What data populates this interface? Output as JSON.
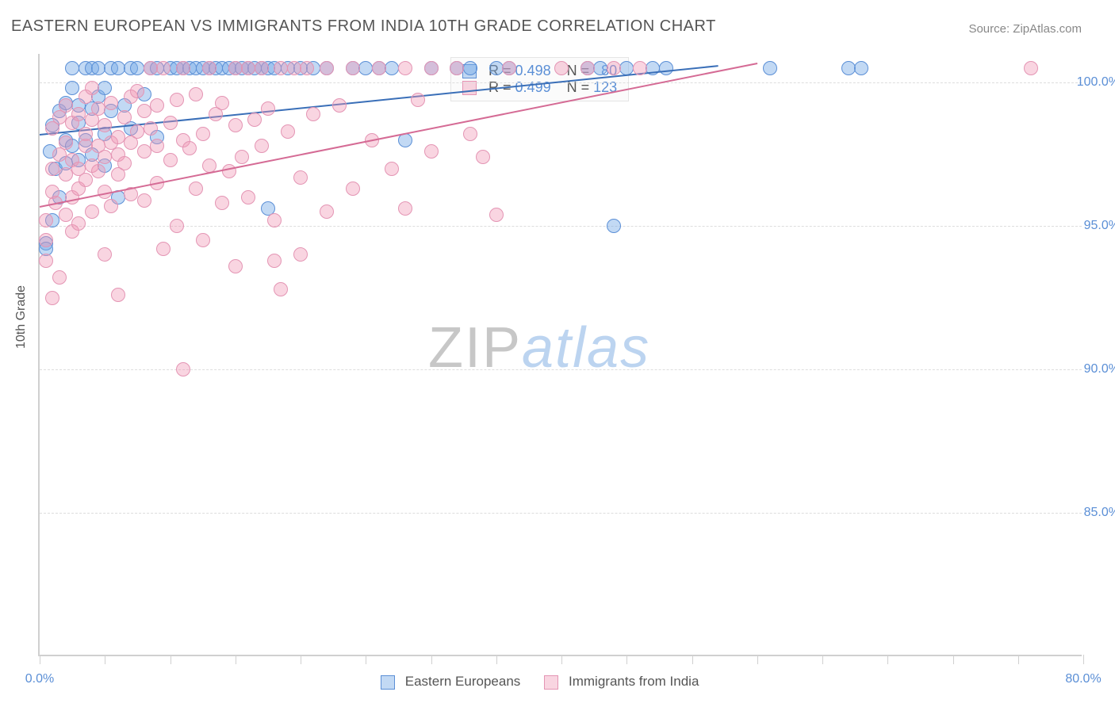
{
  "title": "EASTERN EUROPEAN VS IMMIGRANTS FROM INDIA 10TH GRADE CORRELATION CHART",
  "source": "Source: ZipAtlas.com",
  "ylabel": "10th Grade",
  "watermark_a": "ZIP",
  "watermark_b": "atlas",
  "chart": {
    "xlim": [
      0,
      80
    ],
    "ylim": [
      80,
      101
    ],
    "xticks": [
      0,
      5,
      10,
      15,
      20,
      25,
      30,
      35,
      40,
      45,
      50,
      55,
      60,
      65,
      70,
      75,
      80
    ],
    "xtick_labels": {
      "0": "0.0%",
      "80": "80.0%"
    },
    "yticks": [
      85,
      90,
      95,
      100
    ],
    "ytick_labels": {
      "85": "85.0%",
      "90": "90.0%",
      "95": "95.0%",
      "100": "100.0%"
    },
    "grid_color": "#dddddd",
    "point_radius": 9,
    "series": [
      {
        "name": "Eastern Europeans",
        "fill": "rgba(120,170,230,0.45)",
        "stroke": "#5b8fd6",
        "line_color": "#3a6fb8",
        "R": "0.498",
        "N": "80",
        "trend": {
          "x1": 0,
          "y1": 98.2,
          "x2": 52,
          "y2": 100.6
        },
        "points": [
          [
            0.5,
            94.4
          ],
          [
            0.5,
            94.2
          ],
          [
            0.8,
            97.6
          ],
          [
            1,
            95.2
          ],
          [
            1,
            98.5
          ],
          [
            1.2,
            97.0
          ],
          [
            1.5,
            99.0
          ],
          [
            1.5,
            96.0
          ],
          [
            2,
            98.0
          ],
          [
            2,
            97.2
          ],
          [
            2,
            99.3
          ],
          [
            2.5,
            100.5
          ],
          [
            2.5,
            97.8
          ],
          [
            2.5,
            99.8
          ],
          [
            3,
            98.6
          ],
          [
            3,
            97.3
          ],
          [
            3,
            99.2
          ],
          [
            3.5,
            100.5
          ],
          [
            3.5,
            98.0
          ],
          [
            4,
            100.5
          ],
          [
            4,
            97.5
          ],
          [
            4,
            99.1
          ],
          [
            4.5,
            99.5
          ],
          [
            4.5,
            100.5
          ],
          [
            5,
            98.2
          ],
          [
            5,
            99.8
          ],
          [
            5,
            97.1
          ],
          [
            5.5,
            100.5
          ],
          [
            5.5,
            99.0
          ],
          [
            6,
            100.5
          ],
          [
            6,
            96.0
          ],
          [
            6.5,
            99.2
          ],
          [
            7,
            100.5
          ],
          [
            7,
            98.4
          ],
          [
            7.5,
            100.5
          ],
          [
            8,
            99.6
          ],
          [
            8.5,
            100.5
          ],
          [
            9,
            100.5
          ],
          [
            9,
            98.1
          ],
          [
            10,
            100.5
          ],
          [
            10.5,
            100.5
          ],
          [
            11,
            100.5
          ],
          [
            11.5,
            100.5
          ],
          [
            12,
            100.5
          ],
          [
            12.5,
            100.5
          ],
          [
            13,
            100.5
          ],
          [
            13.5,
            100.5
          ],
          [
            14,
            100.5
          ],
          [
            14.5,
            100.5
          ],
          [
            15,
            100.5
          ],
          [
            15.5,
            100.5
          ],
          [
            16,
            100.5
          ],
          [
            16.5,
            100.5
          ],
          [
            17,
            100.5
          ],
          [
            17.5,
            95.6
          ],
          [
            17.5,
            100.5
          ],
          [
            18,
            100.5
          ],
          [
            19,
            100.5
          ],
          [
            20,
            100.5
          ],
          [
            21,
            100.5
          ],
          [
            22,
            100.5
          ],
          [
            24,
            100.5
          ],
          [
            25,
            100.5
          ],
          [
            26,
            100.5
          ],
          [
            27,
            100.5
          ],
          [
            28,
            98.0
          ],
          [
            30,
            100.5
          ],
          [
            32,
            100.5
          ],
          [
            33,
            100.5
          ],
          [
            35,
            100.5
          ],
          [
            36,
            100.5
          ],
          [
            42,
            100.5
          ],
          [
            43,
            100.5
          ],
          [
            44,
            95.0
          ],
          [
            45,
            100.5
          ],
          [
            47,
            100.5
          ],
          [
            48,
            100.5
          ],
          [
            56,
            100.5
          ],
          [
            62,
            100.5
          ],
          [
            63,
            100.5
          ]
        ]
      },
      {
        "name": "Immigrants from India",
        "fill": "rgba(240,150,180,0.40)",
        "stroke": "#e495b4",
        "line_color": "#d56b95",
        "R": "0.499",
        "N": "123",
        "trend": {
          "x1": 0,
          "y1": 95.7,
          "x2": 55,
          "y2": 100.7
        },
        "points": [
          [
            0.5,
            93.8
          ],
          [
            0.5,
            95.2
          ],
          [
            0.5,
            94.5
          ],
          [
            1,
            97.0
          ],
          [
            1,
            96.2
          ],
          [
            1,
            92.5
          ],
          [
            1,
            98.4
          ],
          [
            1.2,
            95.8
          ],
          [
            1.5,
            97.5
          ],
          [
            1.5,
            98.8
          ],
          [
            1.5,
            93.2
          ],
          [
            2,
            96.8
          ],
          [
            2,
            95.4
          ],
          [
            2,
            97.9
          ],
          [
            2,
            99.2
          ],
          [
            2.5,
            96.0
          ],
          [
            2.5,
            97.3
          ],
          [
            2.5,
            94.8
          ],
          [
            2.5,
            98.6
          ],
          [
            3,
            97.0
          ],
          [
            3,
            98.9
          ],
          [
            3,
            96.3
          ],
          [
            3,
            95.1
          ],
          [
            3.5,
            97.8
          ],
          [
            3.5,
            96.6
          ],
          [
            3.5,
            98.2
          ],
          [
            3.5,
            99.5
          ],
          [
            4,
            97.1
          ],
          [
            4,
            95.5
          ],
          [
            4,
            98.7
          ],
          [
            4,
            99.8
          ],
          [
            4.5,
            96.9
          ],
          [
            4.5,
            97.8
          ],
          [
            4.5,
            99.1
          ],
          [
            5,
            97.4
          ],
          [
            5,
            96.2
          ],
          [
            5,
            98.5
          ],
          [
            5,
            94.0
          ],
          [
            5.5,
            97.9
          ],
          [
            5.5,
            99.3
          ],
          [
            5.5,
            95.7
          ],
          [
            6,
            98.1
          ],
          [
            6,
            96.8
          ],
          [
            6,
            97.5
          ],
          [
            6,
            92.6
          ],
          [
            6.5,
            98.8
          ],
          [
            6.5,
            97.2
          ],
          [
            7,
            99.5
          ],
          [
            7,
            97.9
          ],
          [
            7,
            96.1
          ],
          [
            7.5,
            98.3
          ],
          [
            7.5,
            99.7
          ],
          [
            8,
            97.6
          ],
          [
            8,
            99.0
          ],
          [
            8,
            95.9
          ],
          [
            8.5,
            98.4
          ],
          [
            8.5,
            100.5
          ],
          [
            9,
            97.8
          ],
          [
            9,
            99.2
          ],
          [
            9,
            96.5
          ],
          [
            9.5,
            100.5
          ],
          [
            9.5,
            94.2
          ],
          [
            10,
            98.6
          ],
          [
            10,
            97.3
          ],
          [
            10.5,
            99.4
          ],
          [
            10.5,
            95.0
          ],
          [
            11,
            98.0
          ],
          [
            11,
            100.5
          ],
          [
            11,
            90.0
          ],
          [
            11.5,
            97.7
          ],
          [
            12,
            99.6
          ],
          [
            12,
            96.3
          ],
          [
            12.5,
            98.2
          ],
          [
            12.5,
            94.5
          ],
          [
            13,
            100.5
          ],
          [
            13,
            97.1
          ],
          [
            13.5,
            98.9
          ],
          [
            14,
            95.8
          ],
          [
            14,
            99.3
          ],
          [
            14.5,
            96.9
          ],
          [
            15,
            98.5
          ],
          [
            15,
            100.5
          ],
          [
            15,
            93.6
          ],
          [
            15.5,
            97.4
          ],
          [
            16,
            100.5
          ],
          [
            16,
            96.0
          ],
          [
            16.5,
            98.7
          ],
          [
            17,
            100.5
          ],
          [
            17,
            97.8
          ],
          [
            17.5,
            99.1
          ],
          [
            18,
            95.2
          ],
          [
            18,
            93.8
          ],
          [
            18.5,
            100.5
          ],
          [
            18.5,
            92.8
          ],
          [
            19,
            98.3
          ],
          [
            19.5,
            100.5
          ],
          [
            20,
            96.7
          ],
          [
            20,
            94.0
          ],
          [
            20.5,
            100.5
          ],
          [
            21,
            98.9
          ],
          [
            22,
            100.5
          ],
          [
            22,
            95.5
          ],
          [
            23,
            99.2
          ],
          [
            24,
            96.3
          ],
          [
            24,
            100.5
          ],
          [
            25.5,
            98.0
          ],
          [
            26,
            100.5
          ],
          [
            27,
            97.0
          ],
          [
            28,
            100.5
          ],
          [
            28,
            95.6
          ],
          [
            29,
            99.4
          ],
          [
            30,
            100.5
          ],
          [
            30,
            97.6
          ],
          [
            32,
            100.5
          ],
          [
            33,
            98.2
          ],
          [
            34,
            97.4
          ],
          [
            35,
            95.4
          ],
          [
            36,
            100.5
          ],
          [
            40,
            100.5
          ],
          [
            42,
            100.5
          ],
          [
            44,
            100.5
          ],
          [
            46,
            100.5
          ],
          [
            76,
            100.5
          ]
        ]
      }
    ]
  },
  "stat_labels": {
    "R": "R =",
    "N": "N ="
  }
}
